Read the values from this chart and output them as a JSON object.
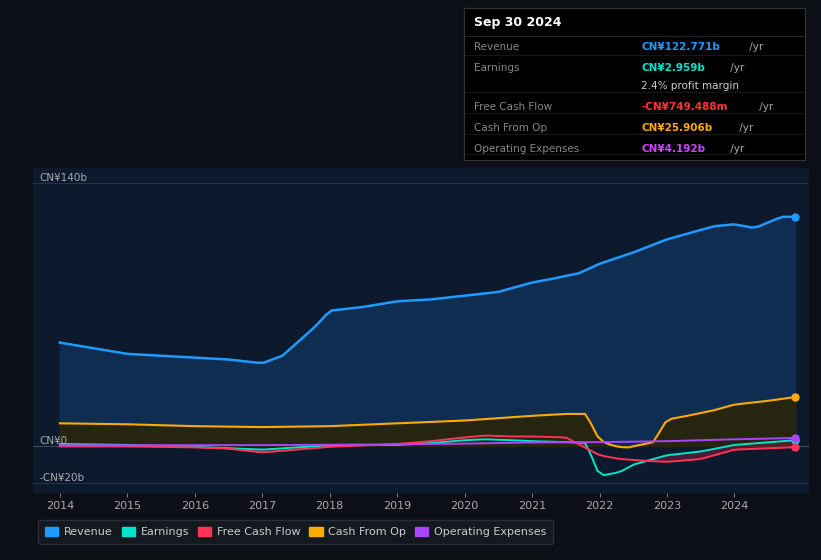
{
  "background_color": "#0d1117",
  "plot_bg": "#0d1a2e",
  "tooltip_bg": "#000000",
  "colors": {
    "revenue": "#1e9bff",
    "earnings": "#00e5cc",
    "free_cash_flow": "#ff3355",
    "cash_from_op": "#ffaa00",
    "operating_expenses": "#aa44ff"
  },
  "fill_revenue": "#0a2a4a",
  "fill_cashop": "#2a2a1a",
  "tooltip": {
    "title": "Sep 30 2024",
    "rows": [
      {
        "label": "Revenue",
        "value": "CN¥122.771b /yr",
        "color": "#1e9bff"
      },
      {
        "label": "Earnings",
        "value": "CN¥2.959b /yr",
        "color": "#00e5cc"
      },
      {
        "label": "",
        "value": "2.4% profit margin",
        "color": "#cccccc"
      },
      {
        "label": "Free Cash Flow",
        "value": "-CN¥749.488m /yr",
        "color": "#ff3333"
      },
      {
        "label": "Cash From Op",
        "value": "CN¥25.906b /yr",
        "color": "#ffaa00"
      },
      {
        "label": "Operating Expenses",
        "value": "CN¥4.192b /yr",
        "color": "#cc44ff"
      }
    ]
  },
  "legend": [
    {
      "label": "Revenue",
      "color": "#1e9bff"
    },
    {
      "label": "Earnings",
      "color": "#00e5cc"
    },
    {
      "label": "Free Cash Flow",
      "color": "#ff3355"
    },
    {
      "label": "Cash From Op",
      "color": "#ffaa00"
    },
    {
      "label": "Operating Expenses",
      "color": "#aa44ff"
    }
  ],
  "xlim": [
    2013.6,
    2025.1
  ],
  "ylim": [
    -25,
    148
  ],
  "ytick_labels": [
    "CN¥140b",
    "CN¥0",
    "-CN¥20b"
  ],
  "ytick_values": [
    140,
    0,
    -20
  ],
  "x_tick_years": [
    2014,
    2015,
    2016,
    2017,
    2018,
    2019,
    2020,
    2021,
    2022,
    2023,
    2024
  ]
}
